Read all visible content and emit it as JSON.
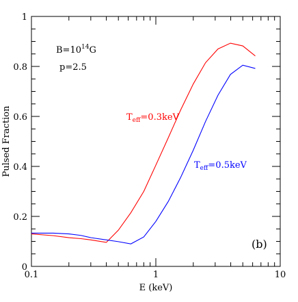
{
  "chart_data": {
    "type": "line",
    "xlabel": "E (keV)",
    "ylabel": "Pulsed Fraction",
    "xscale": "log",
    "xlim": [
      0.1,
      10
    ],
    "ylim": [
      0,
      1
    ],
    "x_ticks": [
      0.1,
      1,
      10
    ],
    "x_tick_labels": [
      "0.1",
      "1",
      "10"
    ],
    "y_ticks": [
      0,
      0.2,
      0.4,
      0.6,
      0.8,
      1
    ],
    "y_tick_labels": [
      "0",
      "0.2",
      "0.4",
      "0.6",
      "0.8",
      "1"
    ],
    "grid": false,
    "panel_label": "(b)",
    "annotations": {
      "field_text": "B=10",
      "field_exponent": "14",
      "field_unit": "G",
      "p_text": "p=2.5"
    },
    "series": [
      {
        "name_main": "T",
        "name_sub": "eff",
        "name_rest": "=0.3keV",
        "color": "#ff0000",
        "x": [
          0.1,
          0.15,
          0.2,
          0.25,
          0.3,
          0.4,
          0.5,
          0.63,
          0.8,
          1.0,
          1.26,
          1.58,
          2.0,
          2.51,
          3.16,
          3.98,
          5.0,
          6.3
        ],
        "y": [
          0.13,
          0.123,
          0.115,
          0.111,
          0.106,
          0.096,
          0.145,
          0.215,
          0.3,
          0.405,
          0.515,
          0.625,
          0.73,
          0.815,
          0.87,
          0.893,
          0.882,
          0.842
        ]
      },
      {
        "name_main": "T",
        "name_sub": "eff",
        "name_rest": "=0.5keV",
        "color": "#0000ff",
        "x": [
          0.1,
          0.15,
          0.2,
          0.25,
          0.3,
          0.4,
          0.5,
          0.63,
          0.8,
          1.0,
          1.26,
          1.58,
          2.0,
          2.51,
          3.16,
          3.98,
          5.0,
          6.3
        ],
        "y": [
          0.133,
          0.133,
          0.13,
          0.124,
          0.115,
          0.106,
          0.099,
          0.09,
          0.118,
          0.18,
          0.26,
          0.355,
          0.465,
          0.58,
          0.685,
          0.768,
          0.805,
          0.792
        ]
      }
    ]
  }
}
